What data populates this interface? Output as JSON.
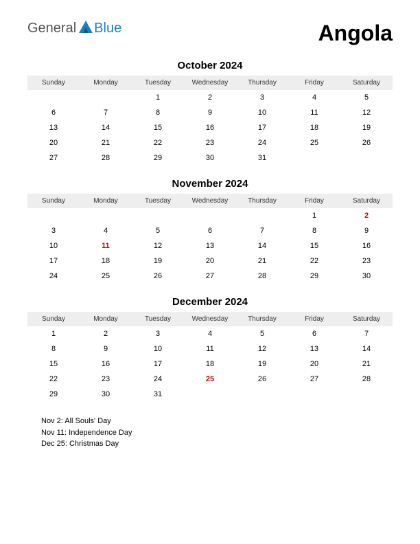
{
  "logo": {
    "text1": "General",
    "text2": "Blue",
    "color1": "#555555",
    "color2": "#1e7fc2",
    "icon_color": "#1e7fc2"
  },
  "country": "Angola",
  "day_headers": [
    "Sunday",
    "Monday",
    "Tuesday",
    "Wednesday",
    "Thursday",
    "Friday",
    "Saturday"
  ],
  "months": [
    {
      "title": "October 2024",
      "weeks": [
        [
          "",
          "",
          "1",
          "2",
          "3",
          "4",
          "5"
        ],
        [
          "6",
          "7",
          "8",
          "9",
          "10",
          "11",
          "12"
        ],
        [
          "13",
          "14",
          "15",
          "16",
          "17",
          "18",
          "19"
        ],
        [
          "20",
          "21",
          "22",
          "23",
          "24",
          "25",
          "26"
        ],
        [
          "27",
          "28",
          "29",
          "30",
          "31",
          "",
          ""
        ]
      ],
      "holidays": []
    },
    {
      "title": "November 2024",
      "weeks": [
        [
          "",
          "",
          "",
          "",
          "",
          "1",
          "2"
        ],
        [
          "3",
          "4",
          "5",
          "6",
          "7",
          "8",
          "9"
        ],
        [
          "10",
          "11",
          "12",
          "13",
          "14",
          "15",
          "16"
        ],
        [
          "17",
          "18",
          "19",
          "20",
          "21",
          "22",
          "23"
        ],
        [
          "24",
          "25",
          "26",
          "27",
          "28",
          "29",
          "30"
        ]
      ],
      "holidays": [
        "2",
        "11"
      ]
    },
    {
      "title": "December 2024",
      "weeks": [
        [
          "1",
          "2",
          "3",
          "4",
          "5",
          "6",
          "7"
        ],
        [
          "8",
          "9",
          "10",
          "11",
          "12",
          "13",
          "14"
        ],
        [
          "15",
          "16",
          "17",
          "18",
          "19",
          "20",
          "21"
        ],
        [
          "22",
          "23",
          "24",
          "25",
          "26",
          "27",
          "28"
        ],
        [
          "29",
          "30",
          "31",
          "",
          "",
          "",
          ""
        ]
      ],
      "holidays": [
        "25"
      ]
    }
  ],
  "holiday_list": [
    "Nov 2: All Souls' Day",
    "Nov 11: Independence Day",
    "Dec 25: Christmas Day"
  ],
  "styles": {
    "header_bg": "#eeeeee",
    "holiday_color": "#cc0000",
    "text_color": "#000000",
    "background": "#ffffff"
  }
}
